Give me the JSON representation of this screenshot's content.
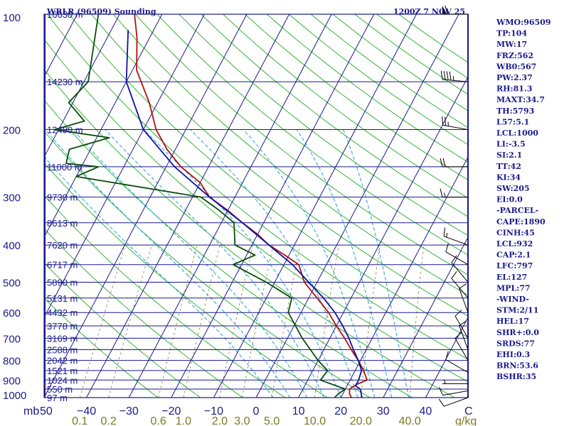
{
  "header": {
    "left_title": "WRLR (96509) Sounding",
    "right_title": "1200Z  7 NOV 25"
  },
  "chart_data": {
    "type": "line",
    "subtype": "skew-t log-p sounding",
    "p_top": 100,
    "p_bottom": 1000,
    "t_min": -50,
    "t_max": 50,
    "pressure_ticks": [
      100,
      200,
      300,
      400,
      500,
      600,
      700,
      800,
      900,
      1000
    ],
    "height_levels": [
      {
        "p": 100,
        "label": "16630 m"
      },
      {
        "p": 150,
        "label": "14230 m"
      },
      {
        "p": 200,
        "label": "12490 m"
      },
      {
        "p": 250,
        "label": "11000 m"
      },
      {
        "p": 300,
        "label": "9730 m"
      },
      {
        "p": 350,
        "label": "8613 m"
      },
      {
        "p": 400,
        "label": "7620 m"
      },
      {
        "p": 450,
        "label": "6717 m"
      },
      {
        "p": 500,
        "label": "5890 m"
      },
      {
        "p": 550,
        "label": "5131 m"
      },
      {
        "p": 600,
        "label": "4432 m"
      },
      {
        "p": 650,
        "label": "3778 m"
      },
      {
        "p": 700,
        "label": "3169 m"
      },
      {
        "p": 750,
        "label": "2588 m"
      },
      {
        "p": 800,
        "label": "2042 m"
      },
      {
        "p": 850,
        "label": "1521 m"
      },
      {
        "p": 900,
        "label": "1024 m"
      },
      {
        "p": 950,
        "label": "550 m"
      },
      {
        "p": 1000,
        "label": "97 m"
      }
    ],
    "x_ticks": [
      -40,
      -30,
      -20,
      -10,
      0,
      10,
      20,
      30,
      40
    ],
    "x_tick_labels": [
      "−40",
      "−30",
      "−20",
      "−10",
      "0",
      "10",
      "20",
      "30",
      "40"
    ],
    "x_left_label": "50",
    "x_right_label": "C",
    "axis_unit_label": "mb",
    "mixing_ratio_labels": [
      "0.1",
      "0.2",
      "0.6",
      "1.0",
      "2.0",
      "3.0",
      "5.0",
      "10.0",
      "20.0",
      "40.0"
    ],
    "mixing_ratio_values": [
      0.1,
      0.2,
      0.6,
      1.0,
      2.0,
      3.0,
      5.0,
      10.0,
      20.0,
      40.0
    ],
    "mixing_ratio_unit": "g/kg",
    "isotherms_c": [
      -120,
      -110,
      -100,
      -90,
      -80,
      -70,
      -60,
      -50,
      -40,
      -30,
      -20,
      -10,
      0,
      10,
      20,
      30,
      40,
      50
    ],
    "dry_adiabats_k": [
      250,
      260,
      270,
      280,
      290,
      300,
      310,
      320,
      330,
      340,
      350,
      360,
      370,
      380,
      390,
      400,
      410,
      420,
      430,
      440,
      450,
      460,
      470,
      480,
      490,
      500
    ],
    "moist_adiabats_c": [
      4,
      8,
      12,
      16,
      20,
      24,
      28,
      32,
      36
    ],
    "series": [
      {
        "name": "Temperature",
        "color": "#b01010",
        "points": [
          [
            100,
            -76.5
          ],
          [
            115,
            -73
          ],
          [
            140,
            -69
          ],
          [
            170,
            -62
          ],
          [
            200,
            -57
          ],
          [
            225,
            -52
          ],
          [
            250,
            -46.5
          ],
          [
            275,
            -40
          ],
          [
            300,
            -36
          ],
          [
            325,
            -30
          ],
          [
            350,
            -25
          ],
          [
            375,
            -20
          ],
          [
            400,
            -16
          ],
          [
            425,
            -11
          ],
          [
            450,
            -6.5
          ],
          [
            500,
            -3
          ],
          [
            550,
            2
          ],
          [
            600,
            6.5
          ],
          [
            650,
            10
          ],
          [
            700,
            13.5
          ],
          [
            750,
            16.5
          ],
          [
            800,
            19.5
          ],
          [
            850,
            22
          ],
          [
            900,
            24
          ],
          [
            925,
            22
          ],
          [
            950,
            21
          ],
          [
            975,
            21.5
          ],
          [
            1000,
            22.5
          ]
        ]
      },
      {
        "name": "Dewpoint",
        "color": "#0a4d0a",
        "points": [
          [
            100,
            -85
          ],
          [
            150,
            -79
          ],
          [
            170,
            -81
          ],
          [
            190,
            -75
          ],
          [
            200,
            -81
          ],
          [
            210,
            -67
          ],
          [
            225,
            -75
          ],
          [
            245,
            -74
          ],
          [
            250,
            -66
          ],
          [
            265,
            -70
          ],
          [
            300,
            -38
          ],
          [
            325,
            -32
          ],
          [
            350,
            -27
          ],
          [
            400,
            -24
          ],
          [
            425,
            -18
          ],
          [
            450,
            -22
          ],
          [
            500,
            -12
          ],
          [
            550,
            -4
          ],
          [
            600,
            -3
          ],
          [
            700,
            3.5
          ],
          [
            800,
            10
          ],
          [
            850,
            13.5
          ],
          [
            900,
            13
          ],
          [
            950,
            20
          ],
          [
            975,
            19
          ],
          [
            1000,
            18.5
          ]
        ]
      },
      {
        "name": "Parcel",
        "color": "#1010a0",
        "points": [
          [
            110,
            -76
          ],
          [
            150,
            -70
          ],
          [
            200,
            -60
          ],
          [
            250,
            -48
          ],
          [
            300,
            -36
          ],
          [
            350,
            -25
          ],
          [
            400,
            -16
          ],
          [
            450,
            -8
          ],
          [
            500,
            -2
          ],
          [
            550,
            3.5
          ],
          [
            600,
            8
          ],
          [
            650,
            11.5
          ],
          [
            700,
            14.5
          ],
          [
            750,
            17
          ],
          [
            800,
            19.5
          ],
          [
            850,
            21.5
          ],
          [
            900,
            22
          ],
          [
            932,
            22
          ],
          [
            950,
            23.5
          ],
          [
            1000,
            25
          ]
        ]
      }
    ],
    "wind_profile": [
      {
        "p": 1000,
        "dir": 250,
        "kt": 10
      },
      {
        "p": 960,
        "dir": 260,
        "kt": 10
      },
      {
        "p": 920,
        "dir": 270,
        "kt": 5
      },
      {
        "p": 860,
        "dir": 300,
        "kt": 10
      },
      {
        "p": 800,
        "dir": 330,
        "kt": 10
      },
      {
        "p": 750,
        "dir": 340,
        "kt": 10
      },
      {
        "p": 700,
        "dir": 330,
        "kt": 10
      },
      {
        "p": 600,
        "dir": 340,
        "kt": 10
      },
      {
        "p": 550,
        "dir": 320,
        "kt": 10
      },
      {
        "p": 500,
        "dir": 320,
        "kt": 10
      },
      {
        "p": 450,
        "dir": 300,
        "kt": 10
      },
      {
        "p": 400,
        "dir": 290,
        "kt": 15
      },
      {
        "p": 300,
        "dir": 270,
        "kt": 15
      },
      {
        "p": 250,
        "dir": 270,
        "kt": 20
      },
      {
        "p": 200,
        "dir": 280,
        "kt": 25
      },
      {
        "p": 150,
        "dir": 275,
        "kt": 45
      },
      {
        "p": 100,
        "dir": 270,
        "kt": 60
      }
    ]
  },
  "indices": [
    {
      "label": "WMO",
      "value": "96509"
    },
    {
      "label": "TP",
      "value": "104"
    },
    {
      "label": "MW",
      "value": "17"
    },
    {
      "label": "FRZ",
      "value": "562"
    },
    {
      "label": "WB0",
      "value": "567"
    },
    {
      "label": "PW",
      "value": "2.37"
    },
    {
      "label": "RH",
      "value": "81.3"
    },
    {
      "label": "MAXT",
      "value": "34.7"
    },
    {
      "label": "TH",
      "value": "5793"
    },
    {
      "label": "L57",
      "value": "5.1"
    },
    {
      "label": "LCL",
      "value": "1000"
    },
    {
      "label": "LI",
      "value": "-3.5"
    },
    {
      "label": "SI",
      "value": "2.1"
    },
    {
      "label": "TT",
      "value": "42"
    },
    {
      "label": "KI",
      "value": "34"
    },
    {
      "label": "SW",
      "value": "205"
    },
    {
      "label": "EI",
      "value": "0.0"
    },
    {
      "label": "",
      "value": "-PARCEL-"
    },
    {
      "label": "CAPE",
      "value": "1890"
    },
    {
      "label": "CINH",
      "value": "45"
    },
    {
      "label": "LCL",
      "value": "932"
    },
    {
      "label": "CAP",
      "value": "2.1"
    },
    {
      "label": "LFC",
      "value": "797"
    },
    {
      "label": "EL",
      "value": "127"
    },
    {
      "label": "MPL",
      "value": "77"
    },
    {
      "label": "",
      "value": "-WIND-"
    },
    {
      "label": "STM",
      "value": "2/11"
    },
    {
      "label": "HEL",
      "value": "17"
    },
    {
      "label": "SHR+",
      "value": "0.0"
    },
    {
      "label": "SRDS",
      "value": "77"
    },
    {
      "label": "EHI",
      "value": "0.3"
    },
    {
      "label": "BRN",
      "value": "53.6"
    },
    {
      "label": "BSHR",
      "value": "35"
    }
  ],
  "colors": {
    "frame": "#1a1a8c",
    "isobar": "#1a1a8c",
    "isotherm": "#1a1a8c",
    "dry_adiabat": "#22aa22",
    "moist_adiabat": "#33a8e0",
    "mixing_ratio": "#8a8a50",
    "label_pressure": "#1a1a8c",
    "label_mixing": "#7a7a20"
  }
}
